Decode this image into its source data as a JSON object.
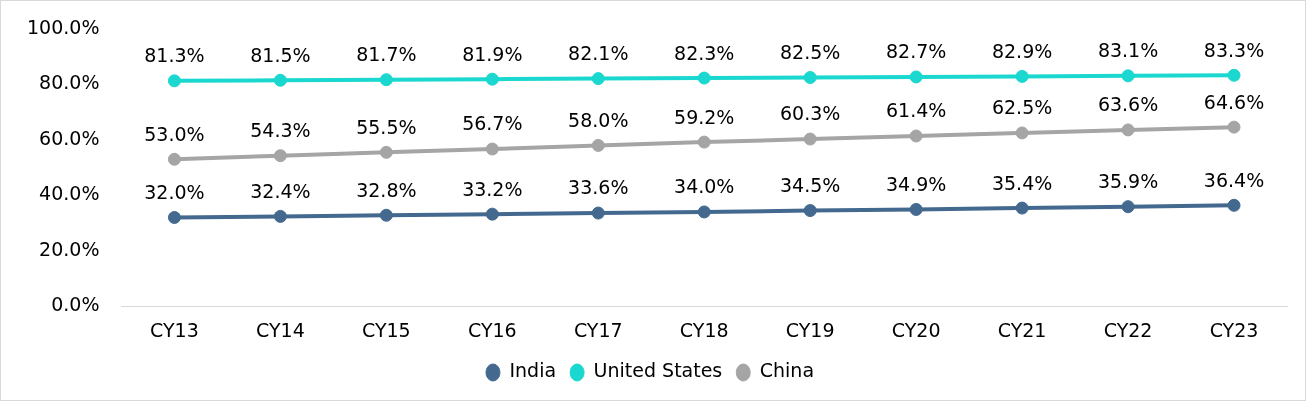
{
  "chart_data": {
    "type": "line",
    "categories": [
      "CY13",
      "CY14",
      "CY15",
      "CY16",
      "CY17",
      "CY18",
      "CY19",
      "CY20",
      "CY21",
      "CY22",
      "CY23"
    ],
    "series": [
      {
        "name": "India",
        "color": "#44698f",
        "values": [
          32.0,
          32.4,
          32.8,
          33.2,
          33.6,
          34.0,
          34.5,
          34.9,
          35.4,
          35.9,
          36.4
        ],
        "value_labels": [
          "32.0%",
          "32.4%",
          "32.8%",
          "33.2%",
          "33.6%",
          "34.0%",
          "34.5%",
          "34.9%",
          "35.4%",
          "35.9%",
          "36.4%"
        ]
      },
      {
        "name": "United States",
        "color": "#1ad8cf",
        "values": [
          81.3,
          81.5,
          81.7,
          81.9,
          82.1,
          82.3,
          82.5,
          82.7,
          82.9,
          83.1,
          83.3
        ],
        "value_labels": [
          "81.3%",
          "81.5%",
          "81.7%",
          "81.9%",
          "82.1%",
          "82.3%",
          "82.5%",
          "82.7%",
          "82.9%",
          "83.1%",
          "83.3%"
        ]
      },
      {
        "name": "China",
        "color": "#a5a5a5",
        "values": [
          53.0,
          54.3,
          55.5,
          56.7,
          58.0,
          59.2,
          60.3,
          61.4,
          62.5,
          63.6,
          64.6
        ],
        "value_labels": [
          "53.0%",
          "54.3%",
          "55.5%",
          "56.7%",
          "58.0%",
          "59.2%",
          "60.3%",
          "61.4%",
          "62.5%",
          "63.6%",
          "64.6%"
        ]
      }
    ],
    "ylim": [
      0,
      100
    ],
    "yticks": [
      {
        "value": 0,
        "label": "0.0%"
      },
      {
        "value": 20,
        "label": "20.0%"
      },
      {
        "value": 40,
        "label": "40.0%"
      },
      {
        "value": 60,
        "label": "60.0%"
      },
      {
        "value": 80,
        "label": "80.0%"
      },
      {
        "value": 100,
        "label": "100.0%"
      }
    ],
    "grid": false,
    "legend": "bottom",
    "marker": "circle",
    "line_style": "solid"
  }
}
